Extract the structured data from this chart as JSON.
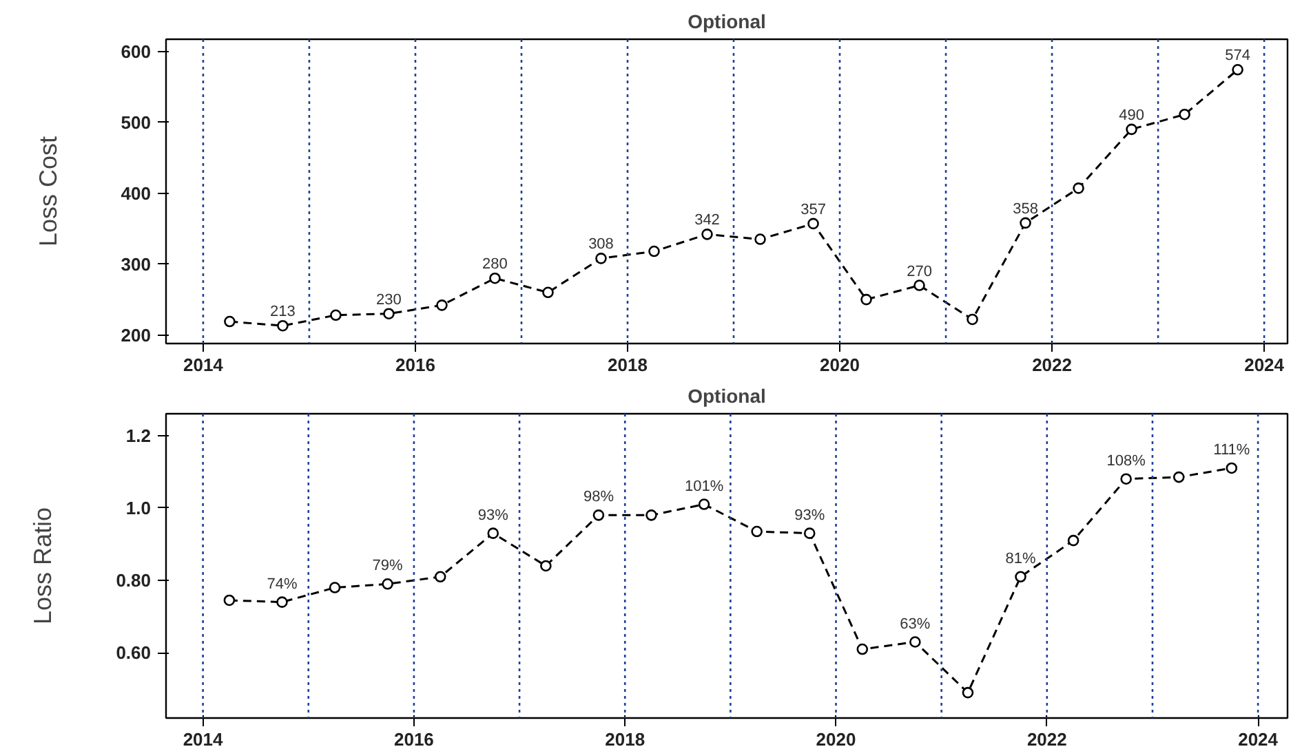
{
  "chart_data": [
    {
      "type": "line",
      "title": "Optional",
      "ylabel": "Loss Cost",
      "x": [
        2014.25,
        2014.75,
        2015.25,
        2015.75,
        2016.25,
        2016.75,
        2017.25,
        2017.75,
        2018.25,
        2018.75,
        2019.25,
        2019.75,
        2020.25,
        2020.75,
        2021.25,
        2021.75,
        2022.25,
        2022.75,
        2023.25,
        2023.75
      ],
      "series": [
        {
          "color": "#000000",
          "values": [
            219,
            213,
            228,
            230,
            242,
            280,
            260,
            308,
            318,
            342,
            335,
            357,
            250,
            270,
            222,
            358,
            407,
            490,
            511,
            574
          ],
          "value_labels": [
            null,
            "213",
            null,
            "230",
            null,
            "280",
            null,
            "308",
            null,
            "342",
            null,
            "357",
            null,
            "270",
            null,
            "358",
            null,
            "490",
            null,
            "574"
          ]
        }
      ],
      "marker": "circle",
      "line_style": "dashed",
      "grid": false,
      "xlim": [
        2013.65,
        2024.22
      ],
      "xticks": [
        2014,
        2016,
        2018,
        2020,
        2022,
        2024
      ],
      "ylim": [
        188,
        617
      ],
      "yticks": [
        200,
        300,
        400,
        500,
        600
      ],
      "ref_lines": [
        {
          "axis": "x",
          "value": 2014,
          "color": "#1f3f99",
          "line_style": "dotted"
        },
        {
          "axis": "x",
          "value": 2015,
          "color": "#1f3f99",
          "line_style": "dotted"
        },
        {
          "axis": "x",
          "value": 2016,
          "color": "#1f3f99",
          "line_style": "dotted"
        },
        {
          "axis": "x",
          "value": 2017,
          "color": "#1f3f99",
          "line_style": "dotted"
        },
        {
          "axis": "x",
          "value": 2018,
          "color": "#1f3f99",
          "line_style": "dotted"
        },
        {
          "axis": "x",
          "value": 2019,
          "color": "#1f3f99",
          "line_style": "dotted"
        },
        {
          "axis": "x",
          "value": 2020,
          "color": "#1f3f99",
          "line_style": "dotted"
        },
        {
          "axis": "x",
          "value": 2021,
          "color": "#1f3f99",
          "line_style": "dotted"
        },
        {
          "axis": "x",
          "value": 2022,
          "color": "#1f3f99",
          "line_style": "dotted"
        },
        {
          "axis": "x",
          "value": 2023,
          "color": "#1f3f99",
          "line_style": "dotted"
        },
        {
          "axis": "x",
          "value": 2024,
          "color": "#1f3f99",
          "line_style": "dotted"
        }
      ]
    },
    {
      "type": "line",
      "title": "Optional",
      "ylabel": "Loss Ratio",
      "x": [
        2014.25,
        2014.75,
        2015.25,
        2015.75,
        2016.25,
        2016.75,
        2017.25,
        2017.75,
        2018.25,
        2018.75,
        2019.25,
        2019.75,
        2020.25,
        2020.75,
        2021.25,
        2021.75,
        2022.25,
        2022.75,
        2023.25,
        2023.75
      ],
      "series": [
        {
          "color": "#000000",
          "values": [
            0.745,
            0.74,
            0.78,
            0.79,
            0.81,
            0.93,
            0.84,
            0.98,
            0.98,
            1.01,
            0.935,
            0.93,
            0.61,
            0.63,
            0.49,
            0.81,
            0.91,
            1.08,
            1.085,
            1.11
          ],
          "value_labels": [
            null,
            "74%",
            null,
            "79%",
            null,
            "93%",
            null,
            "98%",
            null,
            "101%",
            null,
            "93%",
            null,
            "63%",
            null,
            "81%",
            null,
            "108%",
            null,
            "111%"
          ]
        }
      ],
      "marker": "circle",
      "line_style": "dashed",
      "grid": false,
      "xlim": [
        2013.65,
        2024.28
      ],
      "xticks": [
        2014,
        2016,
        2018,
        2020,
        2022,
        2024
      ],
      "ylim": [
        0.42,
        1.26
      ],
      "yticks": [
        {
          "value": 0.6,
          "label": "0.60"
        },
        {
          "value": 0.8,
          "label": "0.80"
        },
        {
          "value": 1.0,
          "label": "1.0"
        },
        {
          "value": 1.2,
          "label": "1.2"
        }
      ],
      "ref_lines": [
        {
          "axis": "x",
          "value": 2014,
          "color": "#1f3f99",
          "line_style": "dotted"
        },
        {
          "axis": "x",
          "value": 2015,
          "color": "#1f3f99",
          "line_style": "dotted"
        },
        {
          "axis": "x",
          "value": 2016,
          "color": "#1f3f99",
          "line_style": "dotted"
        },
        {
          "axis": "x",
          "value": 2017,
          "color": "#1f3f99",
          "line_style": "dotted"
        },
        {
          "axis": "x",
          "value": 2018,
          "color": "#1f3f99",
          "line_style": "dotted"
        },
        {
          "axis": "x",
          "value": 2019,
          "color": "#1f3f99",
          "line_style": "dotted"
        },
        {
          "axis": "x",
          "value": 2020,
          "color": "#1f3f99",
          "line_style": "dotted"
        },
        {
          "axis": "x",
          "value": 2021,
          "color": "#1f3f99",
          "line_style": "dotted"
        },
        {
          "axis": "x",
          "value": 2022,
          "color": "#1f3f99",
          "line_style": "dotted"
        },
        {
          "axis": "x",
          "value": 2023,
          "color": "#1f3f99",
          "line_style": "dotted"
        },
        {
          "axis": "x",
          "value": 2024,
          "color": "#1f3f99",
          "line_style": "dotted"
        }
      ]
    }
  ]
}
